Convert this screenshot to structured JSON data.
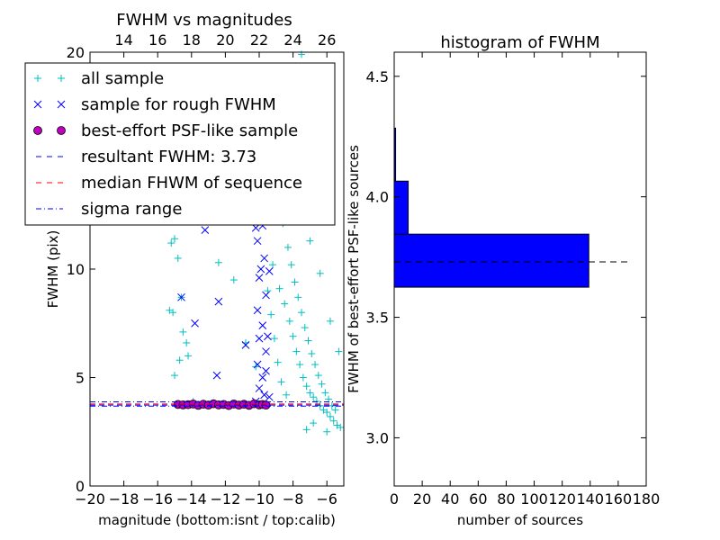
{
  "chart_data": [
    {
      "type": "scatter",
      "title": "FWHM vs magnitudes",
      "xlabel": "magnitude (bottom:isnt / top:calib)",
      "ylabel": "FWHM (pix)",
      "xlim": [
        -20,
        -5
      ],
      "ylim": [
        0,
        20
      ],
      "xticks": [
        "−20",
        "−18",
        "−16",
        "−14",
        "−12",
        "−10",
        "−8",
        "−6"
      ],
      "xtick_values": [
        -20,
        -18,
        -16,
        -14,
        -12,
        -10,
        -8,
        -6
      ],
      "yticks": [
        "0",
        "5",
        "10",
        "15",
        "20"
      ],
      "ytick_values": [
        0,
        5,
        10,
        15,
        20
      ],
      "top_axis_ticks": [
        "14",
        "16",
        "18",
        "20",
        "22",
        "24",
        "26"
      ],
      "top_axis_offset": 32.0,
      "legend": {
        "placement": "upper-left",
        "entries": [
          {
            "marker": "+",
            "color": "#00bfbf",
            "label": "all sample"
          },
          {
            "marker": "x",
            "color": "#0000ff",
            "label": "sample for rough FWHM"
          },
          {
            "marker": "o",
            "color": "#bf00bf",
            "label": "best-effort PSF-like sample"
          },
          {
            "marker": "dashed",
            "color": "#0000ff",
            "label": "resultant FWHM: 3.73"
          },
          {
            "marker": "dashed",
            "color": "#ff0000",
            "label": "median FHWM of sequence"
          },
          {
            "marker": "dashdot",
            "color": "#0000ff",
            "label": "sigma range"
          }
        ]
      },
      "series": [
        {
          "name": "all sample",
          "color": "#00bfbf",
          "marker": "+",
          "points": [
            [
              -15.2,
              11.2
            ],
            [
              -15.0,
              11.4
            ],
            [
              -14.8,
              10.5
            ],
            [
              -14.6,
              8.7
            ],
            [
              -14.5,
              7.1
            ],
            [
              -14.3,
              6.6
            ],
            [
              -14.2,
              6.0
            ],
            [
              -15.1,
              8.0
            ],
            [
              -15.3,
              8.1
            ],
            [
              -14.7,
              5.8
            ],
            [
              -15.0,
              5.1
            ],
            [
              -13.9,
              3.9
            ],
            [
              -12.4,
              10.3
            ],
            [
              -11.5,
              9.5
            ],
            [
              -10.8,
              6.6
            ],
            [
              -10.2,
              5.5
            ],
            [
              -9.9,
              14.8
            ],
            [
              -9.0,
              16.2
            ],
            [
              -8.0,
              17.6
            ],
            [
              -7.5,
              19.9
            ],
            [
              -7.0,
              17.3
            ],
            [
              -6.5,
              14.5
            ],
            [
              -9.2,
              10.2
            ],
            [
              -8.8,
              9.1
            ],
            [
              -8.5,
              8.4
            ],
            [
              -8.2,
              7.6
            ],
            [
              -8.0,
              6.9
            ],
            [
              -7.8,
              6.2
            ],
            [
              -7.6,
              5.6
            ],
            [
              -7.4,
              5.0
            ],
            [
              -7.2,
              4.6
            ],
            [
              -7.0,
              4.3
            ],
            [
              -6.8,
              4.1
            ],
            [
              -6.6,
              3.9
            ],
            [
              -6.4,
              3.7
            ],
            [
              -6.2,
              3.5
            ],
            [
              -6.0,
              3.4
            ],
            [
              -5.8,
              3.2
            ],
            [
              -5.6,
              3.0
            ],
            [
              -5.4,
              2.8
            ],
            [
              -5.2,
              2.7
            ],
            [
              -8.6,
              12.1
            ],
            [
              -8.3,
              11.0
            ],
            [
              -8.1,
              10.2
            ],
            [
              -7.9,
              9.4
            ],
            [
              -7.7,
              8.7
            ],
            [
              -7.5,
              8.0
            ],
            [
              -7.3,
              7.3
            ],
            [
              -7.1,
              6.7
            ],
            [
              -6.9,
              6.1
            ],
            [
              -6.7,
              5.6
            ],
            [
              -6.5,
              5.1
            ],
            [
              -6.3,
              4.7
            ],
            [
              -6.1,
              4.3
            ],
            [
              -5.9,
              4.0
            ],
            [
              -5.7,
              3.7
            ],
            [
              -5.5,
              3.5
            ],
            [
              -7.2,
              2.6
            ],
            [
              -6.8,
              2.9
            ],
            [
              -6.0,
              2.5
            ],
            [
              -9.5,
              9.0
            ],
            [
              -9.3,
              7.9
            ],
            [
              -9.1,
              6.8
            ],
            [
              -8.9,
              5.7
            ],
            [
              -8.7,
              4.8
            ],
            [
              -8.4,
              4.2
            ],
            [
              -8.2,
              13.8
            ],
            [
              -7.6,
              12.4
            ],
            [
              -7.0,
              11.3
            ],
            [
              -6.4,
              9.8
            ],
            [
              -5.8,
              7.6
            ],
            [
              -5.3,
              6.2
            ]
          ]
        },
        {
          "name": "sample for rough FWHM",
          "color": "#0000ff",
          "marker": "x",
          "points": [
            [
              -13.2,
              11.8
            ],
            [
              -14.6,
              8.7
            ],
            [
              -13.8,
              7.5
            ],
            [
              -12.4,
              8.5
            ],
            [
              -12.5,
              5.1
            ],
            [
              -10.8,
              6.5
            ],
            [
              -10.0,
              14.8
            ],
            [
              -10.2,
              13.6
            ],
            [
              -9.8,
              12.0
            ],
            [
              -10.1,
              11.3
            ],
            [
              -9.7,
              10.5
            ],
            [
              -10.0,
              9.6
            ],
            [
              -9.6,
              8.8
            ],
            [
              -10.1,
              8.1
            ],
            [
              -9.8,
              7.4
            ],
            [
              -10.0,
              6.8
            ],
            [
              -9.6,
              6.2
            ],
            [
              -10.1,
              5.6
            ],
            [
              -9.8,
              5.0
            ],
            [
              -10.0,
              4.5
            ],
            [
              -9.7,
              4.2
            ],
            [
              -10.2,
              3.9
            ],
            [
              -9.9,
              15.9
            ],
            [
              -9.5,
              13.2
            ],
            [
              -9.4,
              9.9
            ],
            [
              -9.5,
              6.9
            ],
            [
              -9.6,
              5.3
            ],
            [
              -9.4,
              4.1
            ],
            [
              -10.2,
              11.9
            ],
            [
              -9.9,
              10.0
            ]
          ]
        },
        {
          "name": "best-effort PSF-like sample",
          "color": "#bf00bf",
          "marker": "o",
          "points": [
            [
              -14.8,
              3.76
            ],
            [
              -14.5,
              3.74
            ],
            [
              -14.2,
              3.75
            ],
            [
              -13.9,
              3.78
            ],
            [
              -13.6,
              3.72
            ],
            [
              -13.3,
              3.77
            ],
            [
              -13.0,
              3.73
            ],
            [
              -12.7,
              3.79
            ],
            [
              -12.4,
              3.74
            ],
            [
              -12.1,
              3.76
            ],
            [
              -11.8,
              3.71
            ],
            [
              -11.5,
              3.78
            ],
            [
              -11.2,
              3.73
            ],
            [
              -10.9,
              3.77
            ],
            [
              -10.6,
              3.72
            ],
            [
              -10.3,
              3.79
            ],
            [
              -10.0,
              3.74
            ],
            [
              -9.8,
              3.76
            ],
            [
              -9.6,
              3.73
            ]
          ]
        }
      ],
      "hlines": [
        {
          "y": 3.73,
          "color": "#0000ff",
          "style": "dashed"
        },
        {
          "y": 3.78,
          "color": "#ff0000",
          "style": "dashed"
        },
        {
          "y": 3.68,
          "color": "#0000ff",
          "style": "dashdot"
        },
        {
          "y": 3.88,
          "color": "#0000ff",
          "style": "dashdot"
        }
      ]
    },
    {
      "type": "bar",
      "orientation": "horizontal",
      "title": "histogram of FWHM",
      "xlabel": "number of sources",
      "ylabel": "FWHM of best-effort PSF-like sources",
      "xlim": [
        0,
        180
      ],
      "ylim": [
        2.8,
        4.6
      ],
      "xticks": [
        "0",
        "20",
        "40",
        "60",
        "80",
        "100",
        "120",
        "140",
        "160",
        "180"
      ],
      "xtick_values": [
        0,
        20,
        40,
        60,
        80,
        100,
        120,
        140,
        160,
        180
      ],
      "yticks": [
        "3.0",
        "3.5",
        "4.0",
        "4.5"
      ],
      "ytick_values": [
        3.0,
        3.5,
        4.0,
        4.5
      ],
      "bars": [
        {
          "y0": 3.625,
          "y1": 3.845,
          "count": 139
        },
        {
          "y0": 3.845,
          "y1": 4.065,
          "count": 10
        },
        {
          "y0": 4.065,
          "y1": 4.285,
          "count": 1
        }
      ],
      "bar_color": "#0000ff",
      "hline": {
        "y": 3.73,
        "x0": 0,
        "x1": 168,
        "color": "#000000",
        "style": "dashed"
      }
    }
  ]
}
